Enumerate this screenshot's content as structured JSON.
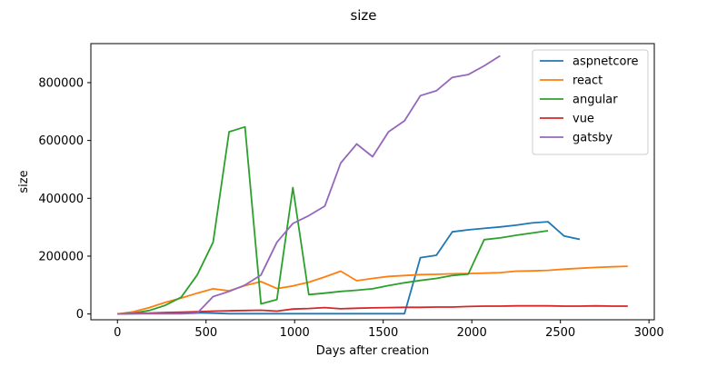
{
  "chart_data": {
    "type": "line",
    "title": "size",
    "xlabel": "Days after creation",
    "ylabel": "size",
    "xlim": [
      -150,
      3030
    ],
    "ylim": [
      -20000,
      935000
    ],
    "xticks": [
      0,
      500,
      1000,
      1500,
      2000,
      2500,
      3000
    ],
    "yticks": [
      0,
      200000,
      400000,
      600000,
      800000
    ],
    "grid": false,
    "legend_position": "top-right",
    "series": [
      {
        "name": "aspnetcore",
        "color": "#1f77b4",
        "points": [
          [
            0,
            0
          ],
          [
            90,
            1000
          ],
          [
            180,
            2000
          ],
          [
            270,
            3000
          ],
          [
            360,
            3000
          ],
          [
            450,
            4000
          ],
          [
            540,
            3000
          ],
          [
            630,
            1000
          ],
          [
            720,
            1000
          ],
          [
            810,
            1000
          ],
          [
            900,
            1000
          ],
          [
            990,
            1000
          ],
          [
            1080,
            1000
          ],
          [
            1170,
            1000
          ],
          [
            1260,
            1000
          ],
          [
            1350,
            1000
          ],
          [
            1440,
            1000
          ],
          [
            1530,
            1000
          ],
          [
            1620,
            1000
          ],
          [
            1710,
            195000
          ],
          [
            1800,
            203000
          ],
          [
            1890,
            284000
          ],
          [
            1980,
            291000
          ],
          [
            2070,
            296000
          ],
          [
            2160,
            301000
          ],
          [
            2250,
            307000
          ],
          [
            2340,
            315000
          ],
          [
            2430,
            319000
          ],
          [
            2520,
            270000
          ],
          [
            2610,
            258000
          ]
        ]
      },
      {
        "name": "react",
        "color": "#ff7f0e",
        "points": [
          [
            0,
            0
          ],
          [
            90,
            8000
          ],
          [
            180,
            22000
          ],
          [
            270,
            40000
          ],
          [
            360,
            55000
          ],
          [
            450,
            72000
          ],
          [
            540,
            87000
          ],
          [
            630,
            80000
          ],
          [
            720,
            98000
          ],
          [
            810,
            112000
          ],
          [
            900,
            88000
          ],
          [
            990,
            97000
          ],
          [
            1080,
            110000
          ],
          [
            1170,
            128000
          ],
          [
            1260,
            148000
          ],
          [
            1350,
            115000
          ],
          [
            1440,
            123000
          ],
          [
            1530,
            130000
          ],
          [
            1620,
            133000
          ],
          [
            1710,
            136000
          ],
          [
            1800,
            137000
          ],
          [
            1890,
            139000
          ],
          [
            1980,
            140000
          ],
          [
            2070,
            141000
          ],
          [
            2160,
            143000
          ],
          [
            2250,
            148000
          ],
          [
            2340,
            149000
          ],
          [
            2430,
            151000
          ],
          [
            2520,
            155000
          ],
          [
            2610,
            158000
          ],
          [
            2700,
            161000
          ],
          [
            2790,
            163000
          ],
          [
            2880,
            165000
          ]
        ]
      },
      {
        "name": "angular",
        "color": "#2ca02c",
        "points": [
          [
            0,
            0
          ],
          [
            90,
            3000
          ],
          [
            180,
            12000
          ],
          [
            270,
            30000
          ],
          [
            360,
            58000
          ],
          [
            450,
            135000
          ],
          [
            540,
            248000
          ],
          [
            630,
            630000
          ],
          [
            720,
            647000
          ],
          [
            810,
            35000
          ],
          [
            900,
            50000
          ],
          [
            990,
            437000
          ],
          [
            1080,
            67000
          ],
          [
            1170,
            72000
          ],
          [
            1260,
            78000
          ],
          [
            1350,
            82000
          ],
          [
            1440,
            87000
          ],
          [
            1530,
            98000
          ],
          [
            1620,
            108000
          ],
          [
            1710,
            116000
          ],
          [
            1800,
            123000
          ],
          [
            1890,
            133000
          ],
          [
            1980,
            138000
          ],
          [
            2070,
            257000
          ],
          [
            2160,
            263000
          ],
          [
            2250,
            272000
          ],
          [
            2340,
            280000
          ],
          [
            2430,
            288000
          ]
        ]
      },
      {
        "name": "vue",
        "color": "#d62728",
        "points": [
          [
            0,
            0
          ],
          [
            90,
            2000
          ],
          [
            180,
            3000
          ],
          [
            270,
            5000
          ],
          [
            360,
            6000
          ],
          [
            450,
            8000
          ],
          [
            540,
            10000
          ],
          [
            630,
            11000
          ],
          [
            720,
            12000
          ],
          [
            810,
            13000
          ],
          [
            900,
            10000
          ],
          [
            990,
            17000
          ],
          [
            1080,
            19000
          ],
          [
            1170,
            22000
          ],
          [
            1260,
            18000
          ],
          [
            1350,
            20000
          ],
          [
            1440,
            21000
          ],
          [
            1530,
            22000
          ],
          [
            1620,
            23000
          ],
          [
            1710,
            23000
          ],
          [
            1800,
            24000
          ],
          [
            1890,
            24000
          ],
          [
            1980,
            26000
          ],
          [
            2070,
            27000
          ],
          [
            2160,
            27000
          ],
          [
            2250,
            28000
          ],
          [
            2340,
            28000
          ],
          [
            2430,
            28000
          ],
          [
            2520,
            27000
          ],
          [
            2610,
            27000
          ],
          [
            2700,
            28000
          ],
          [
            2790,
            27000
          ],
          [
            2880,
            27000
          ]
        ]
      },
      {
        "name": "gatsby",
        "color": "#9467bd",
        "points": [
          [
            0,
            0
          ],
          [
            90,
            1000
          ],
          [
            180,
            1000
          ],
          [
            270,
            1000
          ],
          [
            360,
            1000
          ],
          [
            450,
            3000
          ],
          [
            540,
            60000
          ],
          [
            630,
            78000
          ],
          [
            720,
            100000
          ],
          [
            810,
            135000
          ],
          [
            900,
            248000
          ],
          [
            990,
            313000
          ],
          [
            1080,
            340000
          ],
          [
            1170,
            373000
          ],
          [
            1260,
            522000
          ],
          [
            1350,
            588000
          ],
          [
            1440,
            544000
          ],
          [
            1530,
            630000
          ],
          [
            1620,
            668000
          ],
          [
            1710,
            755000
          ],
          [
            1800,
            772000
          ],
          [
            1890,
            818000
          ],
          [
            1980,
            828000
          ],
          [
            2070,
            858000
          ],
          [
            2160,
            893000
          ]
        ]
      }
    ]
  }
}
